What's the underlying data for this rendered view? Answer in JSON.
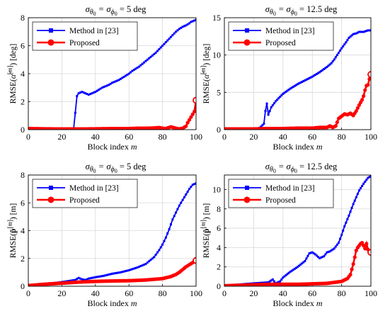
{
  "chart_data": [
    {
      "type": "line",
      "title": "σθ0 = σϕ0 = 5 deg",
      "xlabel": "Block index m",
      "ylabel": "RMSE(α̂[m]) [deg]",
      "xlim": [
        0,
        100
      ],
      "ylim": [
        0,
        8
      ],
      "xticks": [
        "0",
        "20",
        "40",
        "60",
        "80",
        "100"
      ],
      "yticks": [
        "0",
        "2",
        "4",
        "6",
        "8"
      ],
      "grid": true,
      "legend": "top-left",
      "series": [
        {
          "name": "Method in [23]",
          "color": "#0000ff",
          "marker": "square",
          "x": [
            0,
            10,
            20,
            27,
            28,
            29,
            30,
            32,
            34,
            36,
            38,
            40,
            42,
            44,
            46,
            48,
            50,
            52,
            54,
            56,
            58,
            60,
            62,
            64,
            66,
            68,
            70,
            72,
            74,
            76,
            78,
            80,
            82,
            84,
            86,
            88,
            90,
            92,
            94,
            96,
            97,
            98,
            99,
            100
          ],
          "values": [
            0.05,
            0.05,
            0.05,
            0.05,
            1.2,
            2.4,
            2.6,
            2.7,
            2.6,
            2.5,
            2.6,
            2.7,
            2.85,
            3.0,
            3.1,
            3.2,
            3.35,
            3.45,
            3.55,
            3.7,
            3.85,
            4.0,
            4.2,
            4.35,
            4.5,
            4.7,
            4.9,
            5.1,
            5.3,
            5.5,
            5.75,
            6.0,
            6.25,
            6.5,
            6.75,
            7.0,
            7.2,
            7.35,
            7.45,
            7.6,
            7.7,
            7.75,
            7.8,
            7.85
          ]
        },
        {
          "name": "Proposed",
          "color": "#ff0000",
          "marker": "circle",
          "x": [
            0,
            10,
            20,
            30,
            40,
            50,
            60,
            65,
            70,
            75,
            78,
            80,
            82,
            85,
            88,
            90,
            92,
            94,
            95,
            96,
            97,
            98,
            99,
            100
          ],
          "values": [
            0.08,
            0.06,
            0.05,
            0.05,
            0.06,
            0.08,
            0.08,
            0.1,
            0.1,
            0.12,
            0.15,
            0.1,
            0.08,
            0.2,
            0.1,
            0.05,
            0.1,
            0.25,
            0.5,
            0.7,
            0.9,
            1.1,
            1.3,
            2.1
          ]
        }
      ]
    },
    {
      "type": "line",
      "title": "σθ0 = σϕ0 = 12.5 deg",
      "xlabel": "Block index m",
      "ylabel": "RMSE(α̂[m]) [deg]",
      "xlim": [
        0,
        100
      ],
      "ylim": [
        0,
        15
      ],
      "xticks": [
        "0",
        "20",
        "40",
        "60",
        "80",
        "100"
      ],
      "yticks": [
        "0",
        "5",
        "10",
        "15"
      ],
      "grid": true,
      "legend": "top-left",
      "series": [
        {
          "name": "Method in [23]",
          "color": "#0000ff",
          "marker": "square",
          "x": [
            0,
            10,
            20,
            23,
            25,
            27,
            28,
            29,
            30,
            32,
            35,
            40,
            45,
            50,
            55,
            60,
            65,
            70,
            73,
            75,
            77,
            80,
            83,
            85,
            88,
            90,
            92,
            95,
            98,
            100
          ],
          "values": [
            0.05,
            0.05,
            0.05,
            0.1,
            0.4,
            0.8,
            2.5,
            3.5,
            2.0,
            3.0,
            3.8,
            4.8,
            5.5,
            6.1,
            6.6,
            7.1,
            7.7,
            8.4,
            8.9,
            9.4,
            10.0,
            10.9,
            11.7,
            12.3,
            12.8,
            12.9,
            13.1,
            13.1,
            13.3,
            13.3
          ]
        },
        {
          "name": "Proposed",
          "color": "#ff0000",
          "marker": "circle",
          "x": [
            0,
            10,
            20,
            30,
            40,
            50,
            60,
            65,
            70,
            72,
            74,
            76,
            78,
            80,
            82,
            84,
            86,
            88,
            90,
            92,
            94,
            95,
            96,
            97,
            98,
            99,
            100
          ],
          "values": [
            0.1,
            0.1,
            0.1,
            0.15,
            0.15,
            0.2,
            0.2,
            0.3,
            0.3,
            0.5,
            0.3,
            0.5,
            1.5,
            1.8,
            2.1,
            2.0,
            2.2,
            1.9,
            2.5,
            3.3,
            4.0,
            4.5,
            5.3,
            5.9,
            6.0,
            6.8,
            7.4
          ]
        }
      ]
    },
    {
      "type": "line",
      "title": "σθ0 = σϕ0 = 5 deg",
      "xlabel": "Block index m",
      "ylabel": "RMSE(p̂[m]) [m]",
      "xlim": [
        0,
        100
      ],
      "ylim": [
        0,
        8
      ],
      "xticks": [
        "0",
        "20",
        "40",
        "60",
        "80",
        "100"
      ],
      "yticks": [
        "0",
        "2",
        "4",
        "6",
        "8"
      ],
      "grid": true,
      "legend": "top-left",
      "series": [
        {
          "name": "Method in [23]",
          "color": "#0000ff",
          "marker": "square",
          "x": [
            0,
            10,
            20,
            28,
            30,
            32,
            34,
            36,
            40,
            45,
            50,
            55,
            60,
            65,
            70,
            75,
            78,
            80,
            82,
            84,
            86,
            88,
            90,
            92,
            94,
            96,
            98,
            100
          ],
          "values": [
            0.05,
            0.15,
            0.3,
            0.45,
            0.6,
            0.5,
            0.45,
            0.55,
            0.65,
            0.75,
            0.9,
            1.0,
            1.15,
            1.35,
            1.6,
            2.1,
            2.6,
            3.0,
            3.5,
            4.1,
            4.8,
            5.3,
            5.8,
            6.2,
            6.6,
            7.0,
            7.3,
            7.4
          ]
        },
        {
          "name": "Proposed",
          "color": "#ff0000",
          "marker": "circle",
          "x": [
            0,
            10,
            20,
            30,
            40,
            50,
            60,
            70,
            75,
            80,
            85,
            88,
            90,
            92,
            94,
            96,
            98,
            100
          ],
          "values": [
            0.05,
            0.15,
            0.22,
            0.3,
            0.35,
            0.38,
            0.4,
            0.45,
            0.5,
            0.55,
            0.7,
            0.85,
            1.0,
            1.2,
            1.4,
            1.55,
            1.7,
            1.85
          ]
        }
      ]
    },
    {
      "type": "line",
      "title": "σθ0 = σϕ0 = 12.5 deg",
      "xlabel": "Block index m",
      "ylabel": "RMSE(p̂[m]) [m]",
      "xlim": [
        0,
        100
      ],
      "ylim": [
        0,
        11.5
      ],
      "xticks": [
        "0",
        "20",
        "40",
        "60",
        "80",
        "100"
      ],
      "yticks": [
        "0",
        "2",
        "4",
        "6",
        "8",
        "10"
      ],
      "grid": true,
      "legend": "top-left",
      "series": [
        {
          "name": "Method in [23]",
          "color": "#0000ff",
          "marker": "square",
          "x": [
            0,
            20,
            30,
            33,
            35,
            38,
            40,
            45,
            50,
            55,
            58,
            60,
            62,
            65,
            68,
            70,
            72,
            75,
            78,
            80,
            82,
            85,
            88,
            90,
            92,
            95,
            98,
            100
          ],
          "values": [
            0.05,
            0.3,
            0.4,
            0.7,
            0.3,
            0.5,
            0.9,
            1.5,
            2.0,
            2.6,
            3.4,
            3.5,
            3.3,
            2.9,
            3.1,
            3.5,
            3.6,
            3.9,
            4.5,
            5.3,
            6.2,
            7.3,
            8.5,
            9.2,
            9.9,
            10.6,
            11.2,
            11.4
          ]
        },
        {
          "name": "Proposed",
          "color": "#ff0000",
          "marker": "circle",
          "x": [
            0,
            10,
            20,
            30,
            40,
            50,
            60,
            70,
            75,
            80,
            84,
            86,
            88,
            90,
            91,
            92,
            93,
            94,
            95,
            96,
            97,
            98,
            99,
            100
          ],
          "values": [
            0.05,
            0.1,
            0.15,
            0.2,
            0.2,
            0.2,
            0.25,
            0.3,
            0.4,
            0.5,
            0.8,
            1.2,
            2.3,
            3.7,
            4.0,
            4.2,
            4.4,
            4.5,
            4.2,
            3.9,
            4.4,
            3.8,
            3.6,
            3.5
          ]
        }
      ]
    }
  ]
}
